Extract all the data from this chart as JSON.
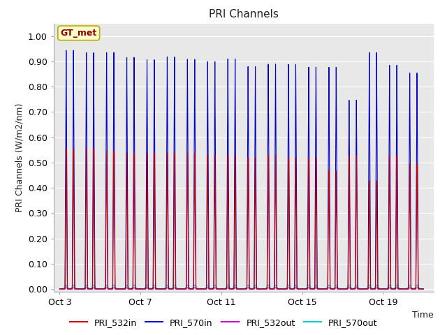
{
  "title": "PRI Channels",
  "ylabel": "PRI Channels (W/m2/nm)",
  "xlabel": "Time",
  "yticks": [
    0.0,
    0.1,
    0.2,
    0.3,
    0.4,
    0.5,
    0.6,
    0.7,
    0.8,
    0.9,
    1.0
  ],
  "xtick_labels": [
    "Oct 3",
    "Oct 7",
    "Oct 11",
    "Oct 15",
    "Oct 19"
  ],
  "fig_bg_color": "#ffffff",
  "plot_bg_color": "#e8e8e8",
  "grid_color": "#ffffff",
  "legend_entries": [
    "PRI_532in",
    "PRI_570in",
    "PRI_532out",
    "PRI_570out"
  ],
  "legend_colors": [
    "#cc0000",
    "#0000cc",
    "#cc00cc",
    "#00cccc"
  ],
  "annotation_text": "GT_met",
  "annotation_bg": "#ffffcc",
  "annotation_border": "#bbaa00",
  "annotation_text_color": "#880000",
  "n_cycles": 18,
  "total_days": 18.0,
  "pri532in_peaks": [
    0.56,
    0.56,
    0.55,
    0.54,
    0.54,
    0.54,
    0.54,
    0.53,
    0.53,
    0.52,
    0.53,
    0.52,
    0.52,
    0.47,
    0.53,
    0.43,
    0.53,
    0.5
  ],
  "pri570in_peaks": [
    0.95,
    0.94,
    0.94,
    0.92,
    0.91,
    0.92,
    0.91,
    0.9,
    0.91,
    0.88,
    0.89,
    0.89,
    0.88,
    0.88,
    0.75,
    0.94,
    0.89,
    0.86
  ],
  "pri532out_peaks": [
    0.005,
    0.005,
    0.005,
    0.005,
    0.005,
    0.005,
    0.005,
    0.005,
    0.005,
    0.005,
    0.005,
    0.005,
    0.005,
    0.005,
    0.005,
    0.005,
    0.005,
    0.005
  ],
  "pri570out_peaks": [
    0.015,
    0.015,
    0.016,
    0.016,
    0.016,
    0.016,
    0.016,
    0.016,
    0.016,
    0.016,
    0.016,
    0.016,
    0.016,
    0.016,
    0.016,
    0.016,
    0.016,
    0.016
  ],
  "xstart": -0.3,
  "xend": 18.5
}
